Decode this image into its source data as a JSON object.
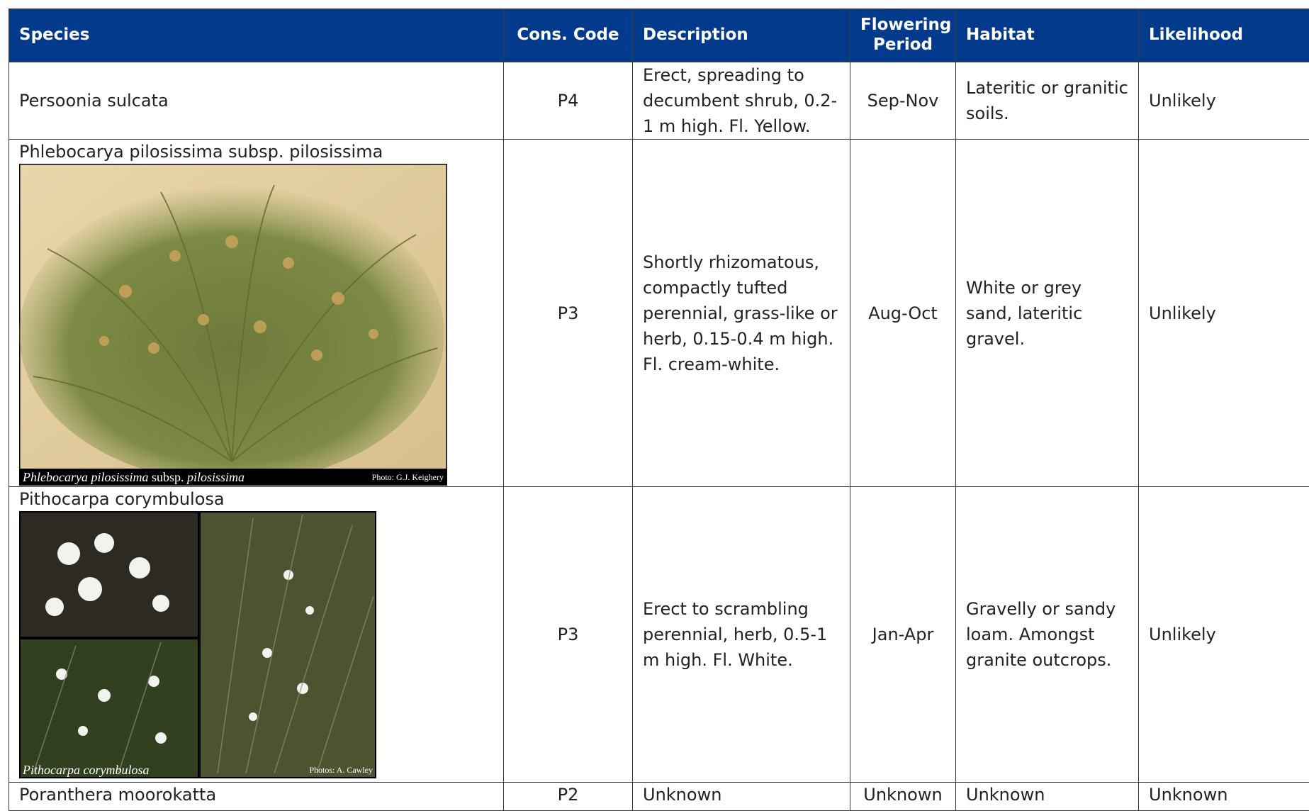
{
  "header": {
    "columns": [
      "Species",
      "Cons. Code",
      "Description",
      "Flowering Period",
      "Habitat",
      "Likelihood"
    ]
  },
  "rows": [
    {
      "species": "Persoonia sulcata",
      "code": "P4",
      "description": "Erect, spreading to decumbent shrub, 0.2-1 m high. Fl. Yellow.",
      "flowering": "Sep-Nov",
      "habitat": "Lateritic or granitic soils.",
      "likelihood": "Unlikely"
    },
    {
      "species": "Phlebocarya pilosissima subsp. pilosissima",
      "photo": {
        "caption": [
          "Phlebocarya pilosissima",
          "subsp.",
          "pilosissima"
        ],
        "credit": "Photo: G.J. Keighery"
      },
      "code": "P3",
      "description": "Shortly rhizomatous, compactly tufted perennial, grass-like or herb, 0.15-0.4 m high. Fl. cream-white.",
      "flowering": "Aug-Oct",
      "habitat": "White or grey sand, lateritic gravel.",
      "likelihood": "Unlikely"
    },
    {
      "species": "Pithocarpa corymbulosa",
      "photo": {
        "caption": [
          "Pithocarpa corymbulosa"
        ],
        "credit": "Photos: A. Cawley"
      },
      "code": "P3",
      "description": "Erect to scrambling perennial, herb, 0.5-1 m high. Fl. White.",
      "flowering": "Jan-Apr",
      "habitat": "Gravelly or sandy loam. Amongst granite outcrops.",
      "likelihood": "Unlikely"
    },
    {
      "species": "Poranthera moorokatta",
      "code": "P2",
      "description": "Unknown",
      "flowering": "Unknown",
      "habitat": "Unknown",
      "likelihood": "Unknown"
    }
  ]
}
